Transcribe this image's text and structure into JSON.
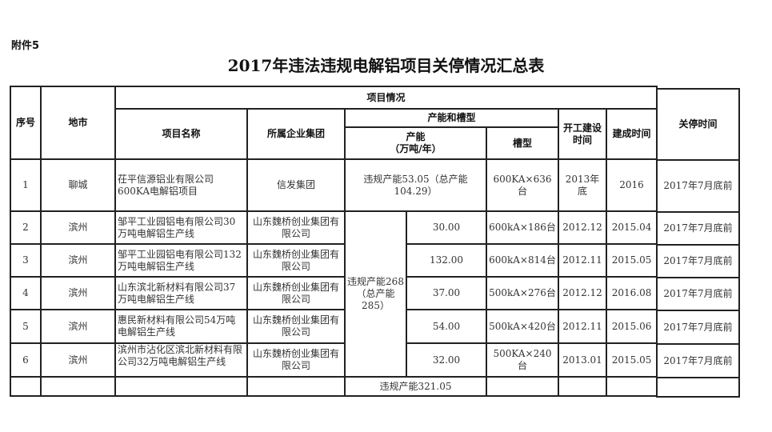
{
  "attachment_label": "附件5",
  "title": "2017年违法违规电解铝项目关停情况汇总表",
  "headers": {
    "seq": "序号",
    "city": "地市",
    "project_info": "项目情况",
    "project_name": "项目名称",
    "group": "所属企业集团",
    "capacity_and_cell": "产能和槽型",
    "capacity": "产能\n（万吨/年）",
    "cell_type": "槽型",
    "start_time": "开工建设时间",
    "complete_time": "建成时间",
    "shutdown_time": "关停时间"
  },
  "rows": [
    {
      "seq": "1",
      "city": "聊城",
      "name": "茌平信源铝业有限公司600KA电解铝项目",
      "group": "信发集团",
      "capacity": "违规产能53.05（总产能104.29）",
      "cell": "600KA×636台",
      "start": "2013年底",
      "complete": "2016",
      "shutdown": "2017年7月底前"
    },
    {
      "seq": "2",
      "city": "滨州",
      "name": "邹平工业园铝电有限公司30万吨电解铝生产线",
      "group": "山东魏桥创业集团有限公司",
      "capacity": "30.00",
      "cell": "600kA×186台",
      "start": "2012.12",
      "complete": "2015.04",
      "shutdown": "2017年7月底前"
    },
    {
      "seq": "3",
      "city": "滨州",
      "name": "邹平工业园铝电有限公司132万吨电解铝生产线",
      "group": "山东魏桥创业集团有限公司",
      "capacity": "132.00",
      "cell": "600kA×814台",
      "start": "2012.11",
      "complete": "2015.05",
      "shutdown": "2017年7月底前"
    },
    {
      "seq": "4",
      "city": "滨州",
      "name": "山东滨北新材料有限公司37万吨电解铝生产线",
      "group": "山东魏桥创业集团有限公司",
      "capacity": "37.00",
      "cell": "500kA×276台",
      "start": "2012.12",
      "complete": "2016.08",
      "shutdown": "2017年7月底前"
    },
    {
      "seq": "5",
      "city": "滨州",
      "name": "惠民新材料有限公司54万吨电解铝生产线",
      "group": "山东魏桥创业集团有限公司",
      "capacity": "54.00",
      "cell": "500kA×420台",
      "start": "2012.11",
      "complete": "2015.06",
      "shutdown": "2017年7月底前"
    },
    {
      "seq": "6",
      "city": "滨州",
      "name": "滨州市沾化区滨北新材料有限公司32万吨电解铝生产线",
      "group": "山东魏桥创业集团有限公司",
      "capacity": "32.00",
      "cell": "500KA×240台",
      "start": "2013.01",
      "complete": "2015.05",
      "shutdown": "2017年7月底前"
    }
  ],
  "weiqiao_group_capacity": "违规产能268（总产能285）",
  "total_capacity": "违规产能321.05"
}
